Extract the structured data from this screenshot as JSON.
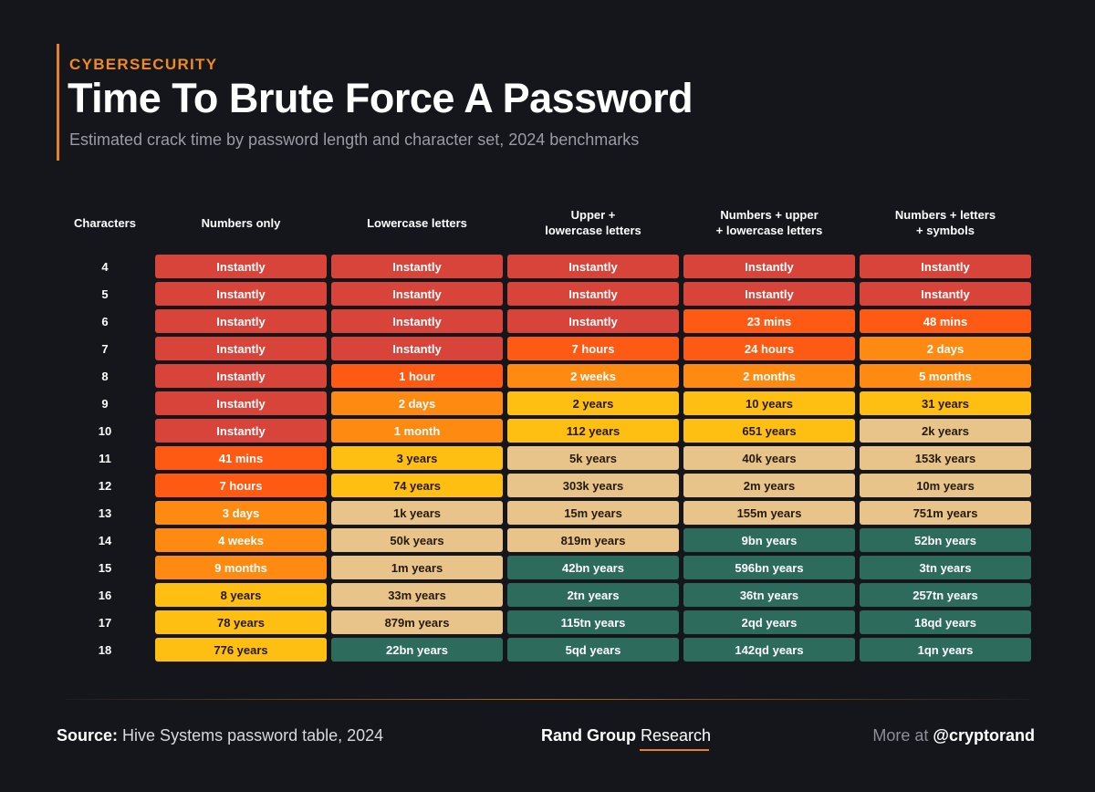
{
  "header": {
    "kicker": "CYBERSECURITY",
    "title": "Time To Brute Force A Password",
    "subtitle": "Estimated crack time by password length and character set, 2024 benchmarks"
  },
  "colors": {
    "background": "#15151c",
    "accent": "#e8821e",
    "red": "#d9443a",
    "orange_red": "#ff5a14",
    "orange": "#ff8a12",
    "yellow": "#ffbf12",
    "tan": "#e9c48a",
    "green": "#2d6b5c"
  },
  "table": {
    "headers": [
      "Characters",
      "Numbers only",
      "Lowercase letters",
      "Upper +\nlowercase letters",
      "Numbers + upper\n+ lowercase letters",
      "Numbers + letters\n+ symbols"
    ],
    "rows": [
      {
        "chars": "4",
        "cells": [
          {
            "t": "Instantly",
            "c": "red"
          },
          {
            "t": "Instantly",
            "c": "red"
          },
          {
            "t": "Instantly",
            "c": "red"
          },
          {
            "t": "Instantly",
            "c": "red"
          },
          {
            "t": "Instantly",
            "c": "red"
          }
        ]
      },
      {
        "chars": "5",
        "cells": [
          {
            "t": "Instantly",
            "c": "red"
          },
          {
            "t": "Instantly",
            "c": "red"
          },
          {
            "t": "Instantly",
            "c": "red"
          },
          {
            "t": "Instantly",
            "c": "red"
          },
          {
            "t": "Instantly",
            "c": "red"
          }
        ]
      },
      {
        "chars": "6",
        "cells": [
          {
            "t": "Instantly",
            "c": "red"
          },
          {
            "t": "Instantly",
            "c": "red"
          },
          {
            "t": "Instantly",
            "c": "red"
          },
          {
            "t": "23 mins",
            "c": "orange_red"
          },
          {
            "t": "48 mins",
            "c": "orange_red"
          }
        ]
      },
      {
        "chars": "7",
        "cells": [
          {
            "t": "Instantly",
            "c": "red"
          },
          {
            "t": "Instantly",
            "c": "red"
          },
          {
            "t": "7 hours",
            "c": "orange_red"
          },
          {
            "t": "24 hours",
            "c": "orange_red"
          },
          {
            "t": "2 days",
            "c": "orange"
          }
        ]
      },
      {
        "chars": "8",
        "cells": [
          {
            "t": "Instantly",
            "c": "red"
          },
          {
            "t": "1 hour",
            "c": "orange_red"
          },
          {
            "t": "2 weeks",
            "c": "orange"
          },
          {
            "t": "2 months",
            "c": "orange"
          },
          {
            "t": "5 months",
            "c": "orange"
          }
        ]
      },
      {
        "chars": "9",
        "cells": [
          {
            "t": "Instantly",
            "c": "red"
          },
          {
            "t": "2 days",
            "c": "orange"
          },
          {
            "t": "2 years",
            "c": "yellow"
          },
          {
            "t": "10 years",
            "c": "yellow"
          },
          {
            "t": "31 years",
            "c": "yellow"
          }
        ]
      },
      {
        "chars": "10",
        "cells": [
          {
            "t": "Instantly",
            "c": "red"
          },
          {
            "t": "1 month",
            "c": "orange"
          },
          {
            "t": "112 years",
            "c": "yellow"
          },
          {
            "t": "651 years",
            "c": "yellow"
          },
          {
            "t": "2k years",
            "c": "tan"
          }
        ]
      },
      {
        "chars": "11",
        "cells": [
          {
            "t": "41 mins",
            "c": "orange_red"
          },
          {
            "t": "3 years",
            "c": "yellow"
          },
          {
            "t": "5k years",
            "c": "tan"
          },
          {
            "t": "40k years",
            "c": "tan"
          },
          {
            "t": "153k years",
            "c": "tan"
          }
        ]
      },
      {
        "chars": "12",
        "cells": [
          {
            "t": "7 hours",
            "c": "orange_red"
          },
          {
            "t": "74 years",
            "c": "yellow"
          },
          {
            "t": "303k years",
            "c": "tan"
          },
          {
            "t": "2m years",
            "c": "tan"
          },
          {
            "t": "10m years",
            "c": "tan"
          }
        ]
      },
      {
        "chars": "13",
        "cells": [
          {
            "t": "3 days",
            "c": "orange"
          },
          {
            "t": "1k years",
            "c": "tan"
          },
          {
            "t": "15m years",
            "c": "tan"
          },
          {
            "t": "155m years",
            "c": "tan"
          },
          {
            "t": "751m years",
            "c": "tan"
          }
        ]
      },
      {
        "chars": "14",
        "cells": [
          {
            "t": "4 weeks",
            "c": "orange"
          },
          {
            "t": "50k years",
            "c": "tan"
          },
          {
            "t": "819m years",
            "c": "tan"
          },
          {
            "t": "9bn years",
            "c": "green"
          },
          {
            "t": "52bn years",
            "c": "green"
          }
        ]
      },
      {
        "chars": "15",
        "cells": [
          {
            "t": "9 months",
            "c": "orange"
          },
          {
            "t": "1m years",
            "c": "tan"
          },
          {
            "t": "42bn years",
            "c": "green"
          },
          {
            "t": "596bn years",
            "c": "green"
          },
          {
            "t": "3tn years",
            "c": "green"
          }
        ]
      },
      {
        "chars": "16",
        "cells": [
          {
            "t": "8 years",
            "c": "yellow"
          },
          {
            "t": "33m years",
            "c": "tan"
          },
          {
            "t": "2tn years",
            "c": "green"
          },
          {
            "t": "36tn years",
            "c": "green"
          },
          {
            "t": "257tn years",
            "c": "green"
          }
        ]
      },
      {
        "chars": "17",
        "cells": [
          {
            "t": "78 years",
            "c": "yellow"
          },
          {
            "t": "879m years",
            "c": "tan"
          },
          {
            "t": "115tn years",
            "c": "green"
          },
          {
            "t": "2qd years",
            "c": "green"
          },
          {
            "t": "18qd years",
            "c": "green"
          }
        ]
      },
      {
        "chars": "18",
        "cells": [
          {
            "t": "776 years",
            "c": "yellow"
          },
          {
            "t": "22bn years",
            "c": "green"
          },
          {
            "t": "5qd years",
            "c": "green"
          },
          {
            "t": "142qd years",
            "c": "green"
          },
          {
            "t": "1qn years",
            "c": "green"
          }
        ]
      }
    ]
  },
  "footer": {
    "source_label": "Source:",
    "source_text": "Hive Systems password table, 2024",
    "brand_strong": "Rand Group",
    "brand_light": "Research",
    "more_label": "More at",
    "handle": "@cryptorand"
  }
}
